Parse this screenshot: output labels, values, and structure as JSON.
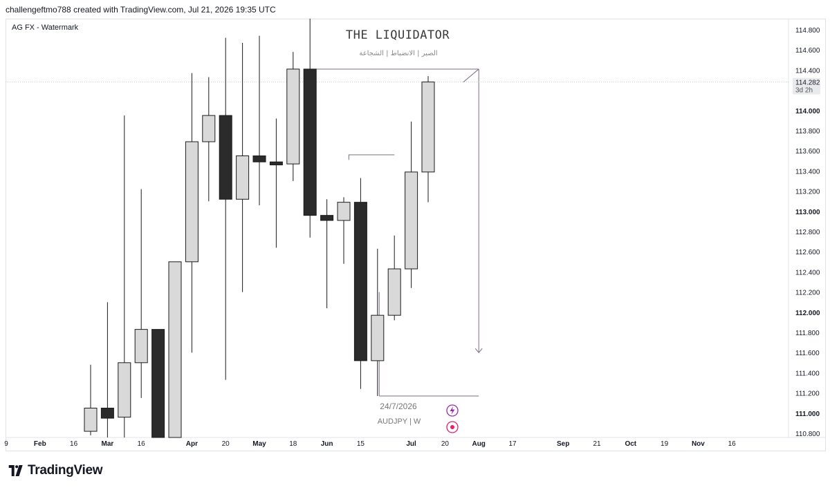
{
  "header": {
    "caption": "challengeftmo788 created with TradingView.com, Jul 21, 2026 19:35 UTC"
  },
  "brand": {
    "name": "TradingView",
    "icon": "tradingview-logo-icon"
  },
  "chart_data": {
    "type": "candlestick",
    "indicator_label": "AG FX - Watermark",
    "watermark": {
      "title": "THE LIQUIDATOR",
      "subtitle": "الصبر | الانضباط | الشجاعة",
      "date": "24/7/2026",
      "symbol": "AUDJPY | W"
    },
    "y_axis": {
      "range": [
        110.7,
        114.9
      ],
      "ticks": [
        "114.800",
        "114.600",
        "114.400",
        "114.200",
        "114.000",
        "113.800",
        "113.600",
        "113.400",
        "113.200",
        "113.000",
        "112.800",
        "112.600",
        "112.400",
        "112.200",
        "112.000",
        "111.800",
        "111.600",
        "111.400",
        "111.200",
        "111.000",
        "110.800"
      ],
      "bold_ticks": [
        "114.000",
        "113.000",
        "112.000",
        "111.000"
      ]
    },
    "last_price": {
      "label": "114.282",
      "countdown": "3d 2h",
      "value": 114.282
    },
    "x_axis": {
      "ticks": [
        {
          "label": "9",
          "bar": -5.0
        },
        {
          "label": "Feb",
          "bar": -3.0
        },
        {
          "label": "16",
          "bar": -1.0
        },
        {
          "label": "Mar",
          "bar": 1.0
        },
        {
          "label": "16",
          "bar": 3.0
        },
        {
          "label": "Apr",
          "bar": 6.0
        },
        {
          "label": "20",
          "bar": 8.0
        },
        {
          "label": "May",
          "bar": 10.0
        },
        {
          "label": "18",
          "bar": 12.0
        },
        {
          "label": "Jun",
          "bar": 14.0
        },
        {
          "label": "15",
          "bar": 16.0
        },
        {
          "label": "Jul",
          "bar": 19.0
        },
        {
          "label": "20",
          "bar": 21.0
        },
        {
          "label": "Aug",
          "bar": 23.0
        },
        {
          "label": "17",
          "bar": 25.0
        },
        {
          "label": "Sep",
          "bar": 28.0
        },
        {
          "label": "21",
          "bar": 30.0
        },
        {
          "label": "Oct",
          "bar": 32.0
        },
        {
          "label": "19",
          "bar": 34.0
        },
        {
          "label": "Nov",
          "bar": 36.0
        },
        {
          "label": "16",
          "bar": 38.0
        }
      ]
    },
    "candles": [
      {
        "o": 110.82,
        "h": 111.48,
        "l": 110.78,
        "c": 111.05
      },
      {
        "o": 111.05,
        "h": 112.1,
        "l": 110.75,
        "c": 110.95
      },
      {
        "o": 110.96,
        "h": 113.95,
        "l": 110.75,
        "c": 111.5
      },
      {
        "o": 111.5,
        "h": 113.22,
        "l": 111.15,
        "c": 111.83
      },
      {
        "o": 111.83,
        "h": 111.83,
        "l": 110.75,
        "c": 110.75
      },
      {
        "o": 110.75,
        "h": 112.5,
        "l": 110.75,
        "c": 112.5
      },
      {
        "o": 112.5,
        "h": 114.37,
        "l": 111.6,
        "c": 113.69
      },
      {
        "o": 113.69,
        "h": 114.33,
        "l": 113.1,
        "c": 113.95
      },
      {
        "o": 113.95,
        "h": 114.72,
        "l": 111.33,
        "c": 113.12
      },
      {
        "o": 113.12,
        "h": 114.67,
        "l": 112.2,
        "c": 113.55
      },
      {
        "o": 113.55,
        "h": 114.74,
        "l": 113.06,
        "c": 113.49
      },
      {
        "o": 113.49,
        "h": 113.92,
        "l": 112.64,
        "c": 113.46
      },
      {
        "o": 113.47,
        "h": 114.58,
        "l": 113.3,
        "c": 114.41
      },
      {
        "o": 114.41,
        "h": 114.91,
        "l": 112.74,
        "c": 112.96
      },
      {
        "o": 112.96,
        "h": 113.12,
        "l": 112.04,
        "c": 112.91
      },
      {
        "o": 112.91,
        "h": 113.14,
        "l": 112.48,
        "c": 113.09
      },
      {
        "o": 113.09,
        "h": 113.33,
        "l": 111.24,
        "c": 111.52
      },
      {
        "o": 111.52,
        "h": 112.63,
        "l": 111.17,
        "c": 111.97
      },
      {
        "o": 111.97,
        "h": 112.76,
        "l": 111.92,
        "c": 112.43
      },
      {
        "o": 112.43,
        "h": 113.89,
        "l": 112.24,
        "c": 113.39
      },
      {
        "o": 113.39,
        "h": 114.34,
        "l": 113.09,
        "c": 114.282
      }
    ],
    "annotations": {
      "range_box": {
        "from_bar": 13,
        "to_bar": 23,
        "top": 114.41,
        "bottom": 111.17
      },
      "mid_line": {
        "from_bar": 15.3,
        "to_bar": 18,
        "price": 113.56
      },
      "arrow": {
        "bar": 23,
        "from_price": 114.41,
        "to_price": 111.6
      },
      "diag_line": {
        "from_bar": 22,
        "from_price": 114.28,
        "to_bar": 23,
        "to_price": 114.41
      }
    }
  },
  "colors": {
    "bull_fill": "#d9d9d9",
    "bear_fill": "#2b2b2b",
    "outline": "#1a1a1a",
    "annotation": "#7b6a8a",
    "lightning_icon": "#9c27b0",
    "record_icon": "#e91e63"
  }
}
